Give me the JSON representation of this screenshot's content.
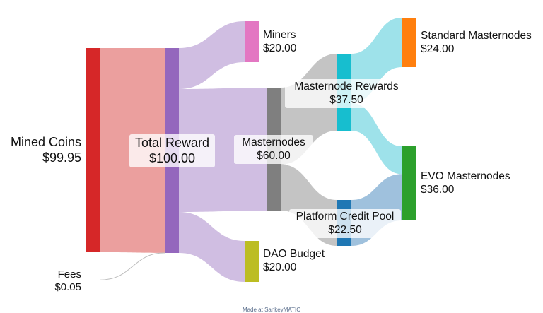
{
  "footer": "Made at SankeyMATIC",
  "colors": {
    "mined": "#d62728",
    "fees": "#bdbdbd",
    "reward": "#9467bd",
    "miners": "#e377c2",
    "masternodes": "#7f7f7f",
    "dao": "#bcbd22",
    "mn_rewards": "#17becf",
    "platform": "#1f77b4",
    "standard": "#ff7f0e",
    "evo": "#2ca02c"
  },
  "nodes": {
    "mined": {
      "name": "Mined Coins",
      "value": "$99.95"
    },
    "fees": {
      "name": "Fees",
      "value": "$0.05"
    },
    "reward": {
      "name": "Total Reward",
      "value": "$100.00"
    },
    "miners": {
      "name": "Miners",
      "value": "$20.00"
    },
    "masternodes": {
      "name": "Masternodes",
      "value": "$60.00"
    },
    "dao": {
      "name": "DAO Budget",
      "value": "$20.00"
    },
    "mn_rewards": {
      "name": "Masternode Rewards",
      "value": "$37.50"
    },
    "platform": {
      "name": "Platform Credit Pool",
      "value": "$22.50"
    },
    "standard": {
      "name": "Standard Masternodes",
      "value": "$24.00"
    },
    "evo": {
      "name": "EVO Masternodes",
      "value": "$36.00"
    }
  },
  "chart_data": {
    "type": "sankey",
    "flows": [
      {
        "from": "Mined Coins",
        "to": "Total Reward",
        "value": 99.95
      },
      {
        "from": "Fees",
        "to": "Total Reward",
        "value": 0.05
      },
      {
        "from": "Total Reward",
        "to": "Miners",
        "value": 20
      },
      {
        "from": "Total Reward",
        "to": "Masternodes",
        "value": 60
      },
      {
        "from": "Total Reward",
        "to": "DAO Budget",
        "value": 20
      },
      {
        "from": "Masternodes",
        "to": "Masternode Rewards",
        "value": 37.5
      },
      {
        "from": "Masternodes",
        "to": "Platform Credit Pool",
        "value": 22.5
      },
      {
        "from": "Masternode Rewards",
        "to": "Standard Masternodes",
        "value": 24
      },
      {
        "from": "Masternode Rewards",
        "to": "EVO Masternodes",
        "value": 13.5
      },
      {
        "from": "Platform Credit Pool",
        "to": "EVO Masternodes",
        "value": 22.5
      }
    ]
  }
}
